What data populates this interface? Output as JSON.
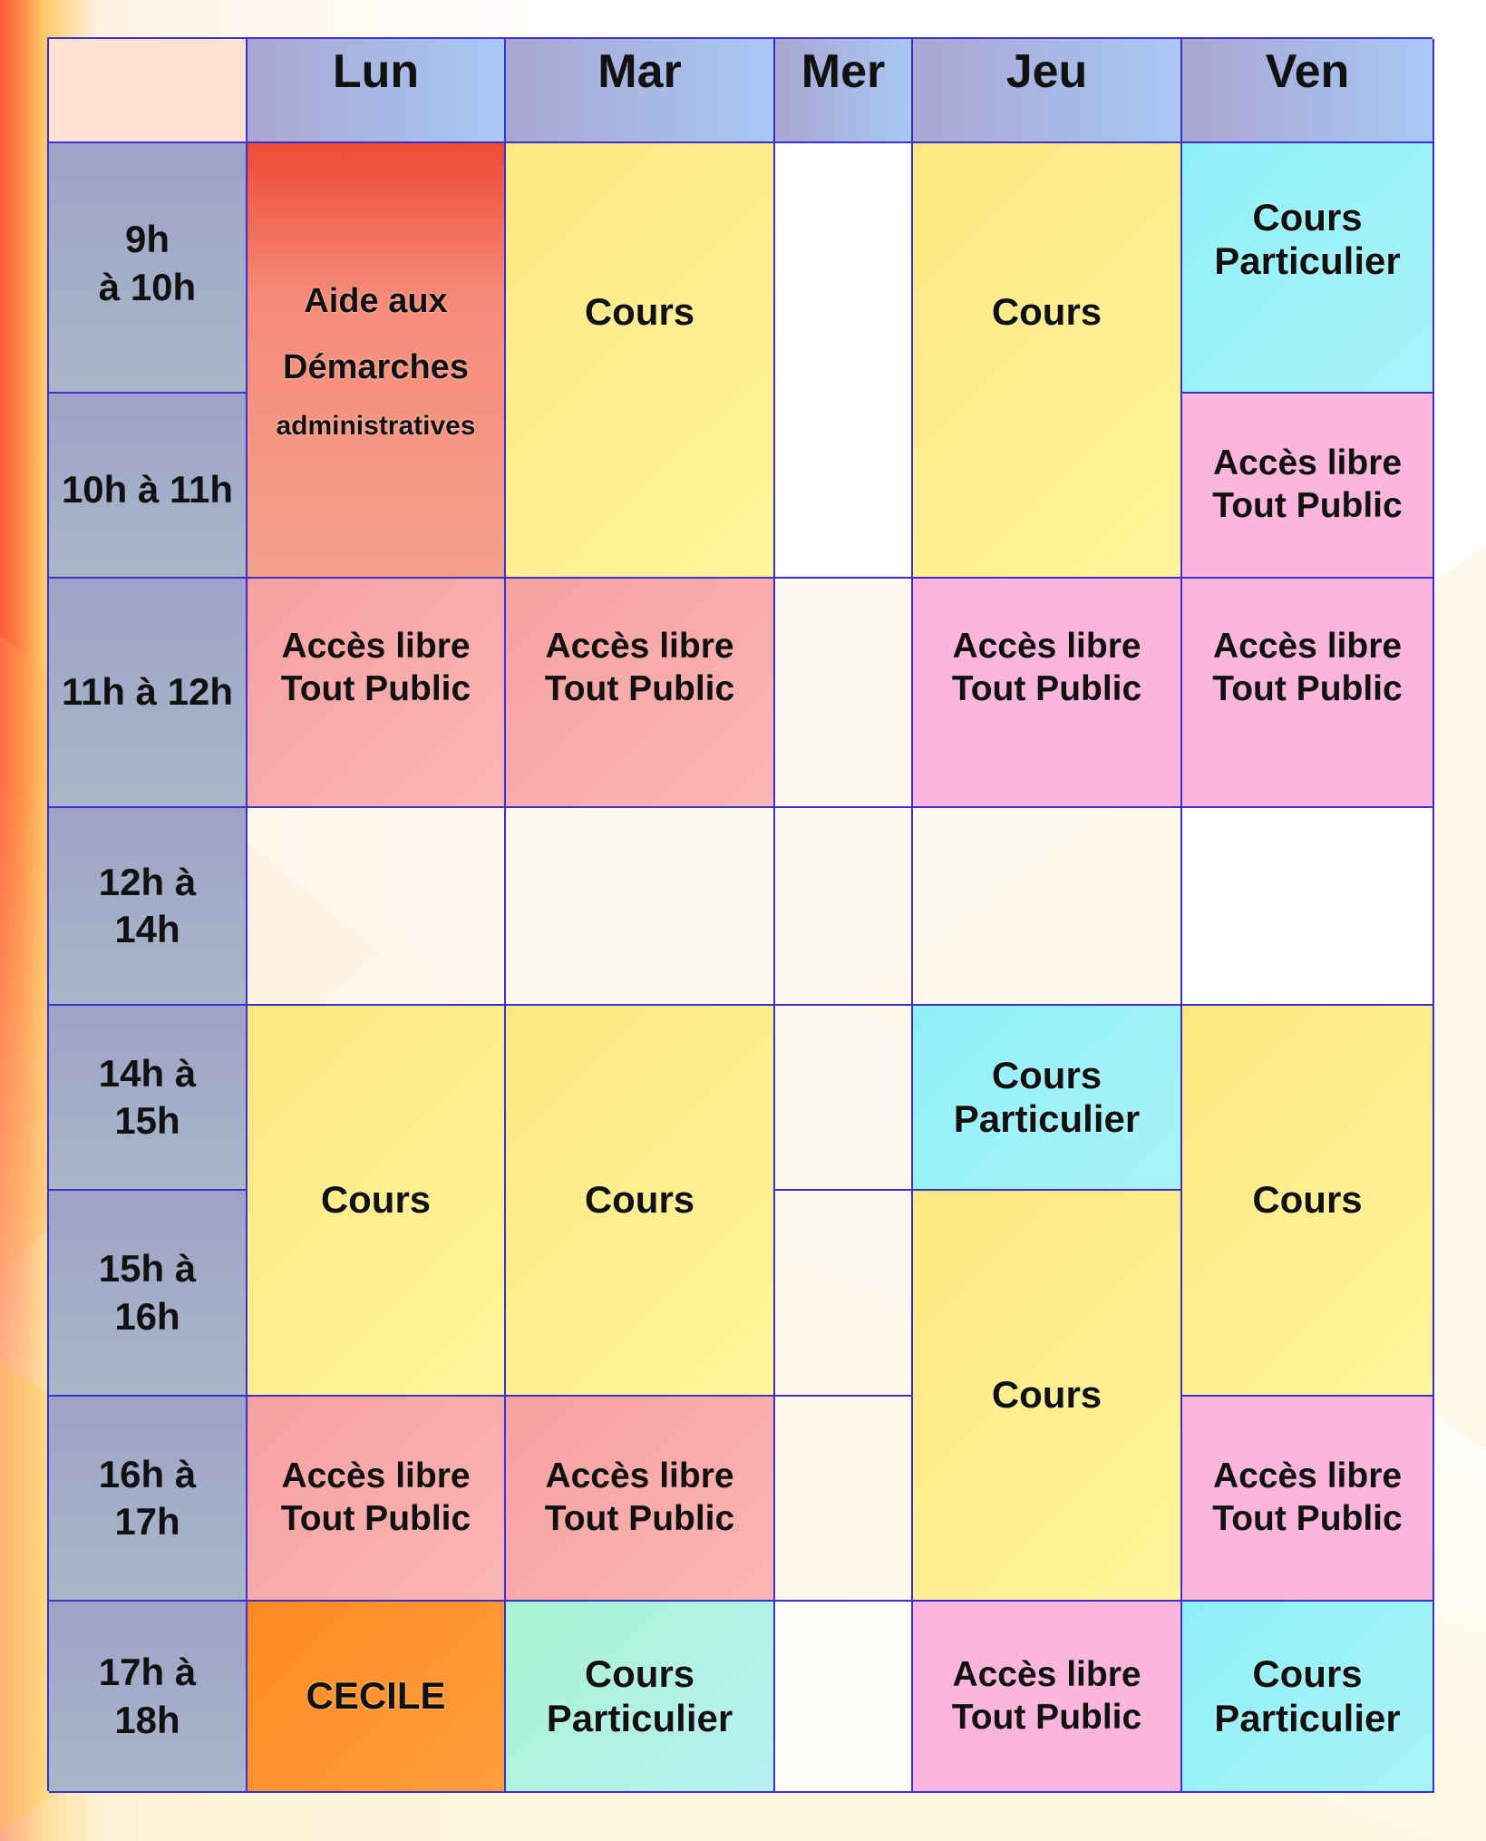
{
  "days": [
    "Lun",
    "Mar",
    "Mer",
    "Jeu",
    "Ven"
  ],
  "times": [
    "9h",
    "à 10h",
    "10h à 11h",
    "11h à 12h",
    "12h à",
    "14h",
    "14h à",
    "15h",
    "15h à",
    "16h",
    "16h à",
    "17h",
    "17h à",
    "18h"
  ],
  "events": {
    "aide": [
      "Aide aux",
      "Démarches",
      "administratives"
    ],
    "cours": "Cours",
    "acces": [
      "Accès libre",
      "Tout Public"
    ],
    "particulier": [
      "Cours",
      "Particulier"
    ],
    "cecile": "CECILE"
  },
  "colors": {
    "border": "#3b2fd0",
    "cours": "#fff59a",
    "particulier": "#9ff1f6",
    "acces_libre": "#fcb6dc",
    "cecile": "#ff9030",
    "header": "#a8c8f6"
  }
}
